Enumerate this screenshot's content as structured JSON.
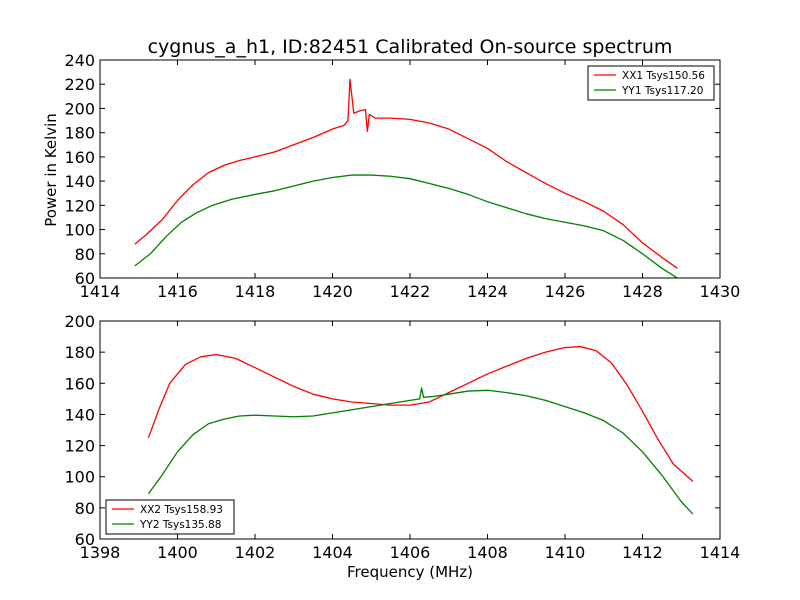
{
  "title": "cygnus_a_h1, ID:82451 Calibrated On-source spectrum",
  "chart_data": [
    {
      "type": "line",
      "ylabel": "Power in Kelvin",
      "xlabel": "",
      "xlim": [
        1414,
        1430
      ],
      "ylim": [
        60,
        240
      ],
      "xticks": [
        1414,
        1416,
        1418,
        1420,
        1422,
        1424,
        1426,
        1428,
        1430
      ],
      "yticks": [
        60,
        80,
        100,
        120,
        140,
        160,
        180,
        200,
        220,
        240
      ],
      "legend_position": "top-right",
      "series": [
        {
          "name": "XX1 Tsys150.56",
          "color": "#ff0000",
          "points": [
            [
              1414.9,
              88
            ],
            [
              1415.2,
              96
            ],
            [
              1415.6,
              108
            ],
            [
              1416.0,
              124
            ],
            [
              1416.4,
              137
            ],
            [
              1416.8,
              147
            ],
            [
              1417.2,
              153
            ],
            [
              1417.6,
              157
            ],
            [
              1418.0,
              160
            ],
            [
              1418.5,
              164
            ],
            [
              1419.0,
              170
            ],
            [
              1419.5,
              176
            ],
            [
              1420.0,
              183
            ],
            [
              1420.3,
              186
            ],
            [
              1420.4,
              190
            ],
            [
              1420.45,
              224
            ],
            [
              1420.5,
              210
            ],
            [
              1420.55,
              196
            ],
            [
              1420.7,
              198
            ],
            [
              1420.85,
              199
            ],
            [
              1420.9,
              181
            ],
            [
              1420.95,
              195
            ],
            [
              1421.1,
              192
            ],
            [
              1421.5,
              192
            ],
            [
              1422.0,
              191
            ],
            [
              1422.5,
              188
            ],
            [
              1423.0,
              183
            ],
            [
              1423.5,
              175
            ],
            [
              1424.0,
              167
            ],
            [
              1424.5,
              156
            ],
            [
              1425.0,
              147
            ],
            [
              1425.5,
              138
            ],
            [
              1426.0,
              130
            ],
            [
              1426.5,
              123
            ],
            [
              1427.0,
              115
            ],
            [
              1427.5,
              104
            ],
            [
              1428.0,
              89
            ],
            [
              1428.5,
              77
            ],
            [
              1428.9,
              68
            ]
          ]
        },
        {
          "name": "YY1 Tsys117.20",
          "color": "#008000",
          "points": [
            [
              1414.9,
              70
            ],
            [
              1415.3,
              80
            ],
            [
              1415.7,
              94
            ],
            [
              1416.1,
              106
            ],
            [
              1416.5,
              114
            ],
            [
              1416.9,
              120
            ],
            [
              1417.4,
              125
            ],
            [
              1418.0,
              129
            ],
            [
              1418.5,
              132
            ],
            [
              1419.0,
              136
            ],
            [
              1419.5,
              140
            ],
            [
              1420.0,
              143
            ],
            [
              1420.5,
              145
            ],
            [
              1421.0,
              145
            ],
            [
              1421.5,
              144
            ],
            [
              1422.0,
              142
            ],
            [
              1422.5,
              138
            ],
            [
              1423.0,
              134
            ],
            [
              1423.5,
              129
            ],
            [
              1424.0,
              123
            ],
            [
              1424.5,
              118
            ],
            [
              1425.0,
              113
            ],
            [
              1425.5,
              109
            ],
            [
              1426.0,
              106
            ],
            [
              1426.5,
              103
            ],
            [
              1427.0,
              99
            ],
            [
              1427.5,
              91
            ],
            [
              1428.0,
              80
            ],
            [
              1428.5,
              68
            ],
            [
              1428.9,
              60
            ]
          ]
        }
      ]
    },
    {
      "type": "line",
      "ylabel": "",
      "xlabel": "Frequency (MHz)",
      "xlim": [
        1398,
        1414
      ],
      "ylim": [
        60,
        200
      ],
      "xticks": [
        1398,
        1400,
        1402,
        1404,
        1406,
        1408,
        1410,
        1412,
        1414
      ],
      "yticks": [
        60,
        80,
        100,
        120,
        140,
        160,
        180,
        200
      ],
      "legend_position": "bottom-left",
      "series": [
        {
          "name": "XX2 Tsys158.93",
          "color": "#ff0000",
          "points": [
            [
              1399.25,
              125
            ],
            [
              1399.5,
              142
            ],
            [
              1399.8,
              160
            ],
            [
              1400.2,
              172
            ],
            [
              1400.6,
              177
            ],
            [
              1401.0,
              178.5
            ],
            [
              1401.5,
              176
            ],
            [
              1402.0,
              170
            ],
            [
              1402.5,
              164
            ],
            [
              1403.0,
              158
            ],
            [
              1403.5,
              153
            ],
            [
              1404.0,
              150
            ],
            [
              1404.5,
              148
            ],
            [
              1405.0,
              147
            ],
            [
              1405.5,
              146
            ],
            [
              1406.0,
              146
            ],
            [
              1406.5,
              148
            ],
            [
              1407.0,
              154
            ],
            [
              1407.5,
              160
            ],
            [
              1408.0,
              166
            ],
            [
              1408.5,
              171
            ],
            [
              1409.0,
              176
            ],
            [
              1409.5,
              180
            ],
            [
              1410.0,
              183
            ],
            [
              1410.4,
              183.5
            ],
            [
              1410.8,
              181
            ],
            [
              1411.2,
              173
            ],
            [
              1411.6,
              159
            ],
            [
              1412.0,
              142
            ],
            [
              1412.4,
              124
            ],
            [
              1412.8,
              108
            ],
            [
              1413.3,
              97
            ]
          ]
        },
        {
          "name": "YY2 Tsys135.88",
          "color": "#008000",
          "points": [
            [
              1399.25,
              89
            ],
            [
              1399.6,
              101
            ],
            [
              1400.0,
              116
            ],
            [
              1400.4,
              127
            ],
            [
              1400.8,
              134
            ],
            [
              1401.2,
              137
            ],
            [
              1401.6,
              139
            ],
            [
              1402.0,
              139.5
            ],
            [
              1402.5,
              139
            ],
            [
              1403.0,
              138.5
            ],
            [
              1403.5,
              139
            ],
            [
              1404.0,
              141
            ],
            [
              1404.5,
              143
            ],
            [
              1405.0,
              145
            ],
            [
              1405.5,
              147
            ],
            [
              1406.0,
              149
            ],
            [
              1406.25,
              150
            ],
            [
              1406.3,
              157
            ],
            [
              1406.35,
              151
            ],
            [
              1406.6,
              151.5
            ],
            [
              1407.0,
              153
            ],
            [
              1407.5,
              155
            ],
            [
              1408.0,
              155.5
            ],
            [
              1408.5,
              154
            ],
            [
              1409.0,
              152
            ],
            [
              1409.5,
              149
            ],
            [
              1410.0,
              145
            ],
            [
              1410.5,
              141
            ],
            [
              1411.0,
              136
            ],
            [
              1411.5,
              128
            ],
            [
              1412.0,
              116
            ],
            [
              1412.5,
              101
            ],
            [
              1413.0,
              84
            ],
            [
              1413.3,
              76
            ]
          ]
        }
      ]
    }
  ]
}
